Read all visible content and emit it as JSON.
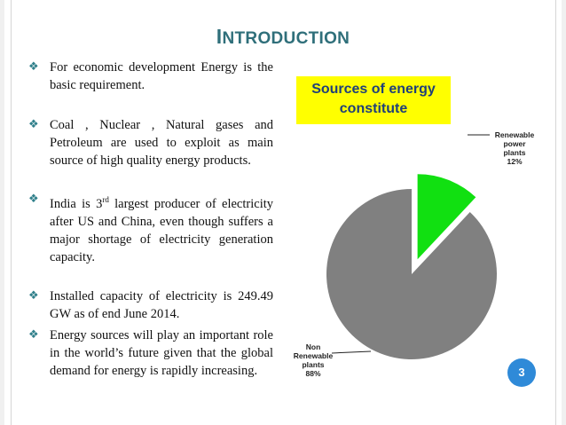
{
  "slide": {
    "title_first": "I",
    "title_rest": "NTRODUCTION",
    "page_number": "3"
  },
  "bullets": [
    {
      "text": "For economic development Energy is the basic requirement."
    },
    {
      "text": "Coal , Nuclear , Natural gases and Petroleum are used to exploit as main source of high quality energy products."
    },
    {
      "pre": "India is 3",
      "sup": "rd",
      "post": " largest producer of electricity after US and China, even though suffers a major shortage of electricity generation capacity."
    },
    {
      "text": "Installed capacity of electricity is 249.49 GW as of end June 2014."
    },
    {
      "text": "Energy sources will play an important role in the world’s future given that the global demand for energy is rapidly increasing."
    }
  ],
  "colors": {
    "title": "#2f6f7a",
    "bullet_icon": "#2f7f8a",
    "chart_title_bg": "#ffff00",
    "chart_title_text": "#1f3f7a",
    "renewable": "#11e011",
    "non_renewable": "#808080",
    "page_badge": "#2f8ad8"
  },
  "chart_data": {
    "type": "pie",
    "title": "Sources of energy constitute",
    "slices": [
      {
        "label_lines": [
          "Renewable",
          "power",
          "plants"
        ],
        "value": 12,
        "value_label": "12%",
        "exploded": true
      },
      {
        "label_lines": [
          "Non",
          "Renewable",
          "plants"
        ],
        "value": 88,
        "value_label": "88%",
        "exploded": false
      }
    ]
  },
  "icons": {
    "bullet": "diamond-bullet-icon"
  }
}
